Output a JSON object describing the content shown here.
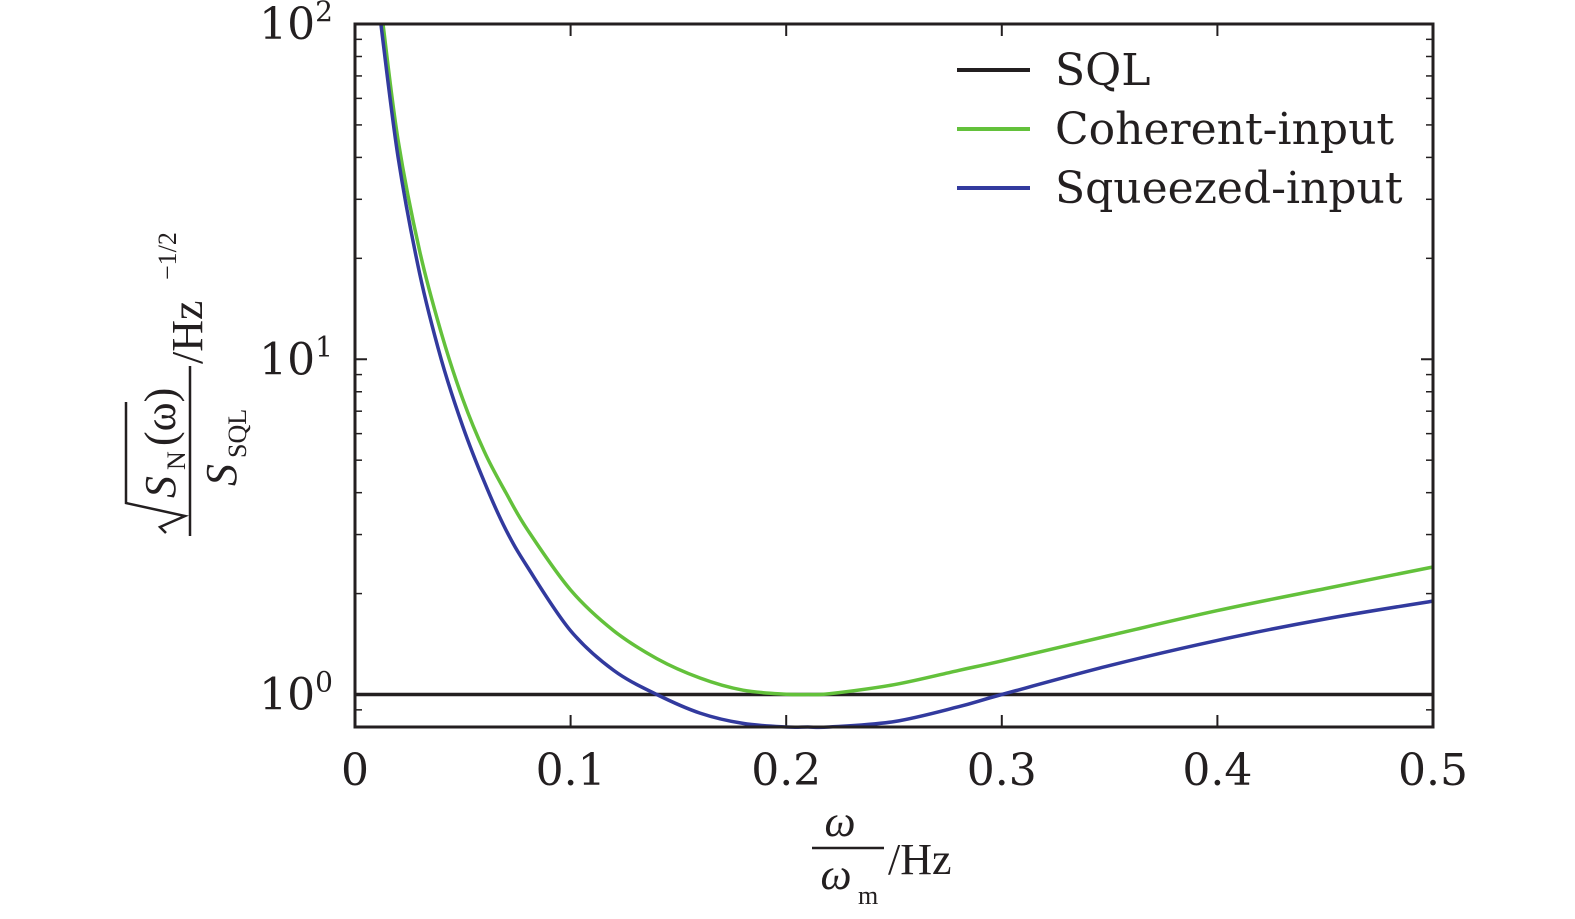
{
  "chart_data": {
    "type": "line",
    "x_scale": "linear",
    "y_scale": "log",
    "xlim": [
      0,
      0.5
    ],
    "ylim": [
      0.8,
      100
    ],
    "x_ticks": [
      0,
      0.1,
      0.2,
      0.3,
      0.4,
      0.5
    ],
    "x_tick_labels": [
      "0",
      "0.1",
      "0.2",
      "0.3",
      "0.4",
      "0.5"
    ],
    "y_ticks": [
      {
        "value": 1,
        "base": "10",
        "exp": "0"
      },
      {
        "value": 10,
        "base": "10",
        "exp": "1"
      },
      {
        "value": 100,
        "base": "10",
        "exp": "2"
      }
    ],
    "xlabel": {
      "num": "ω",
      "den": "ω",
      "den_sub": "m",
      "unit": "/Hz"
    },
    "ylabel": {
      "num": "S",
      "num_sub": "N",
      "num_arg": "(ω)",
      "den": "S",
      "den_sub": "SQL",
      "unit": "/Hz",
      "unit_exp": "−1/2"
    },
    "legend_position": "top-right",
    "grid": false,
    "series": [
      {
        "name": "SQL",
        "color": "#231f20",
        "x": [
          0.0,
          0.5
        ],
        "y": [
          1.0,
          1.0
        ]
      },
      {
        "name": "Coherent-input",
        "color": "#63c13b",
        "x": [
          0.013,
          0.02,
          0.03,
          0.04,
          0.05,
          0.06,
          0.07,
          0.08,
          0.1,
          0.12,
          0.14,
          0.16,
          0.18,
          0.2,
          0.21,
          0.22,
          0.25,
          0.28,
          0.3,
          0.35,
          0.4,
          0.45,
          0.5
        ],
        "y": [
          100,
          45,
          21,
          12,
          7.6,
          5.3,
          4.0,
          3.1,
          2.05,
          1.55,
          1.28,
          1.12,
          1.03,
          1.002,
          1.0,
          1.005,
          1.07,
          1.18,
          1.26,
          1.5,
          1.78,
          2.07,
          2.4
        ]
      },
      {
        "name": "Squeezed-input",
        "color": "#323a9e",
        "x": [
          0.012,
          0.02,
          0.03,
          0.04,
          0.05,
          0.06,
          0.07,
          0.08,
          0.1,
          0.12,
          0.14,
          0.16,
          0.18,
          0.2,
          0.21,
          0.22,
          0.25,
          0.28,
          0.3,
          0.35,
          0.4,
          0.45,
          0.5
        ],
        "y": [
          100,
          40,
          18,
          10,
          6.3,
          4.3,
          3.1,
          2.4,
          1.55,
          1.18,
          1.0,
          0.88,
          0.82,
          0.8,
          0.8,
          0.8,
          0.83,
          0.92,
          1.0,
          1.22,
          1.45,
          1.68,
          1.9
        ]
      }
    ]
  }
}
